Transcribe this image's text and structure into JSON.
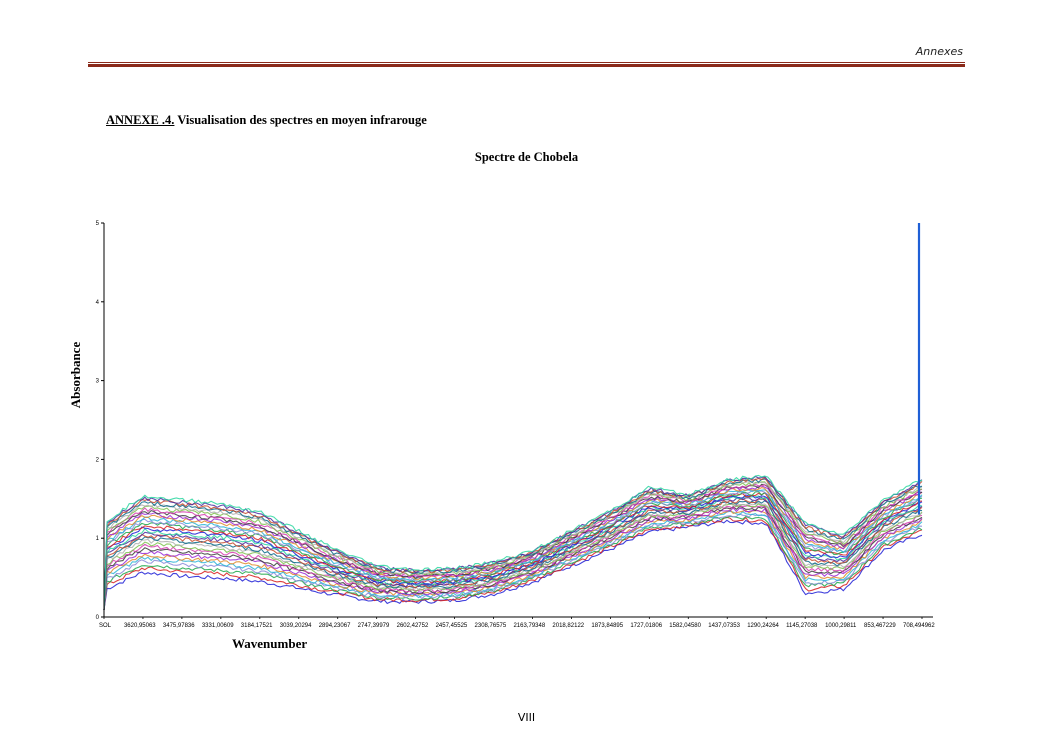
{
  "header": {
    "title": "Annexes"
  },
  "annex": {
    "label": "ANNEXE .4.",
    "title": "Visualisation des spectres en moyen infrarouge"
  },
  "footer": {
    "page_number": "VIII"
  },
  "chart_data": {
    "type": "line",
    "title": "Spectre de Chobela",
    "xlabel": "Wavenumber",
    "ylabel": "Absorbance",
    "ylim": [
      0,
      5
    ],
    "yticks": [
      "0",
      "1",
      "2",
      "3",
      "4",
      "5"
    ],
    "xticks": [
      "SOL",
      "3620,95063",
      "3475,97836",
      "3331,00609",
      "3184,17521",
      "3039,20294",
      "2894,23067",
      "2747,39979",
      "2602,42752",
      "2457,45525",
      "2308,76575",
      "2163,79348",
      "2018,82122",
      "1873,84895",
      "1727,01806",
      "1582,04580",
      "1437,07353",
      "1290,24264",
      "1145,27038",
      "1000,29811",
      "853,467229",
      "708,494962"
    ],
    "grid": false,
    "legend": "none",
    "series_colors": [
      "#1f1fd6",
      "#d61f1f",
      "#1fa84a",
      "#8a8ad8",
      "#2ab3d6",
      "#e08a2a",
      "#9b2ad6",
      "#3a3a3a",
      "#d63ab0",
      "#7bc14a",
      "#b0b0b0",
      "#0a6a8a",
      "#c84a2a",
      "#4a2aa0",
      "#2ad6a0"
    ],
    "series_count": 30,
    "envelope": {
      "x": [
        "SOL",
        "3620,95063",
        "3475,97836",
        "3331,00609",
        "3184,17521",
        "3039,20294",
        "2894,23067",
        "2747,39979",
        "2602,42752",
        "2457,45525",
        "2308,76575",
        "2163,79348",
        "2018,82122",
        "1873,84895",
        "1727,01806",
        "1582,04580",
        "1437,07353",
        "1290,24264",
        "1145,27038",
        "1000,29811",
        "853,467229",
        "708,494962"
      ],
      "upper": [
        1.2,
        1.55,
        1.5,
        1.45,
        1.35,
        1.1,
        0.85,
        0.65,
        0.6,
        0.62,
        0.7,
        0.85,
        1.1,
        1.35,
        1.65,
        1.55,
        1.75,
        1.8,
        1.2,
        1.05,
        1.5,
        1.75
      ],
      "lower": [
        0.15,
        0.35,
        0.3,
        0.28,
        0.25,
        0.2,
        0.15,
        0.1,
        0.1,
        0.12,
        0.2,
        0.35,
        0.55,
        0.75,
        0.95,
        1.05,
        1.1,
        1.05,
        0.1,
        0.2,
        0.7,
        0.9
      ]
    },
    "peak": {
      "x": "708,494962",
      "y": 5.0
    }
  }
}
